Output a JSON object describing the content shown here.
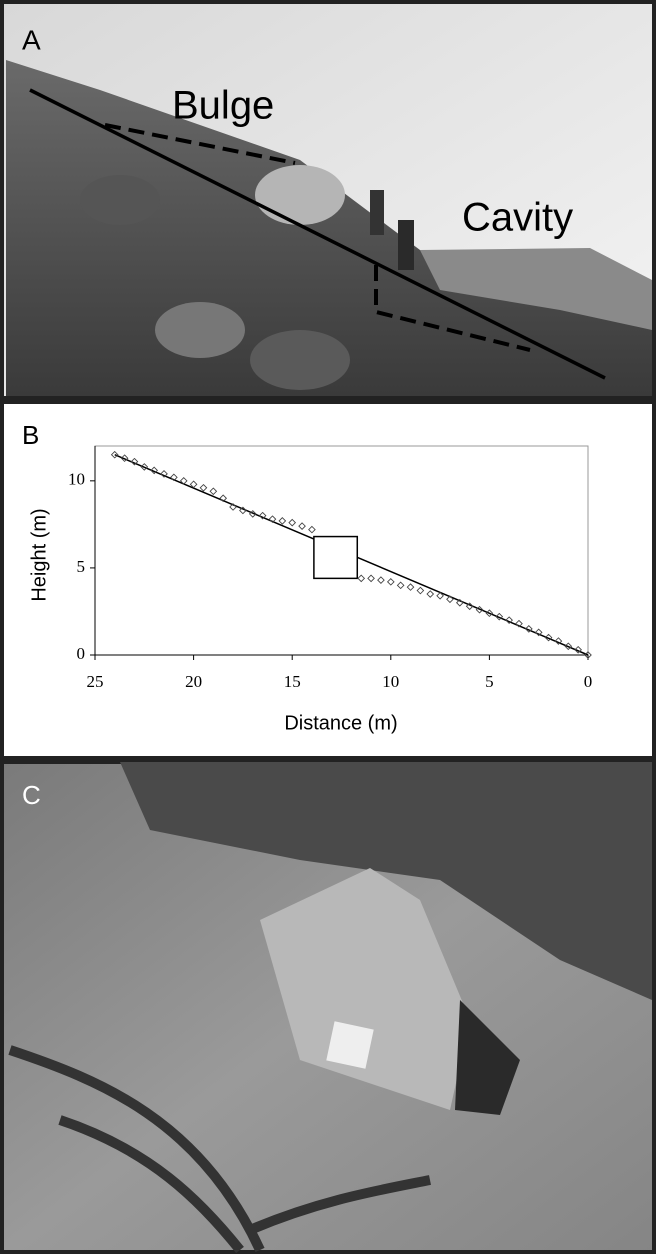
{
  "panel_a": {
    "label": "A",
    "annotations": [
      "Bulge",
      "Cavity"
    ]
  },
  "panel_b": {
    "label": "B"
  },
  "panel_c": {
    "label": "C"
  },
  "chart_data": {
    "type": "scatter",
    "x_label": "Distance (m)",
    "y_label": "Height (m)",
    "xlim": [
      25,
      0
    ],
    "ylim": [
      0,
      12
    ],
    "xticks": [
      25,
      20,
      15,
      10,
      5,
      0
    ],
    "yticks": [
      0,
      5,
      10
    ],
    "marker": "diamond",
    "color": "#444444",
    "x": [
      24,
      23.5,
      23,
      22.5,
      22,
      21.5,
      21,
      20.5,
      20,
      19.5,
      19,
      18.5,
      18,
      17.5,
      17,
      16.5,
      16,
      15.5,
      15,
      14.5,
      14,
      11.5,
      11,
      10.5,
      10,
      9.5,
      9,
      8.5,
      8,
      7.5,
      7,
      6.5,
      6,
      5.5,
      5,
      4.5,
      4,
      3.5,
      3,
      2.5,
      2,
      1.5,
      1,
      0.5,
      0
    ],
    "y": [
      11.5,
      11.3,
      11.1,
      10.8,
      10.6,
      10.4,
      10.2,
      10.0,
      9.8,
      9.6,
      9.4,
      9.0,
      8.5,
      8.3,
      8.1,
      8.0,
      7.8,
      7.7,
      7.6,
      7.4,
      7.2,
      4.4,
      4.4,
      4.3,
      4.2,
      4.0,
      3.9,
      3.7,
      3.5,
      3.4,
      3.2,
      3.0,
      2.8,
      2.6,
      2.4,
      2.2,
      2.0,
      1.8,
      1.5,
      1.3,
      1.0,
      0.8,
      0.5,
      0.3,
      0
    ],
    "trend_line": {
      "x": [
        24,
        0
      ],
      "y": [
        11.5,
        0
      ]
    },
    "highlight_box": {
      "x": [
        13.9,
        11.7
      ],
      "y": [
        4.4,
        6.8
      ]
    }
  }
}
